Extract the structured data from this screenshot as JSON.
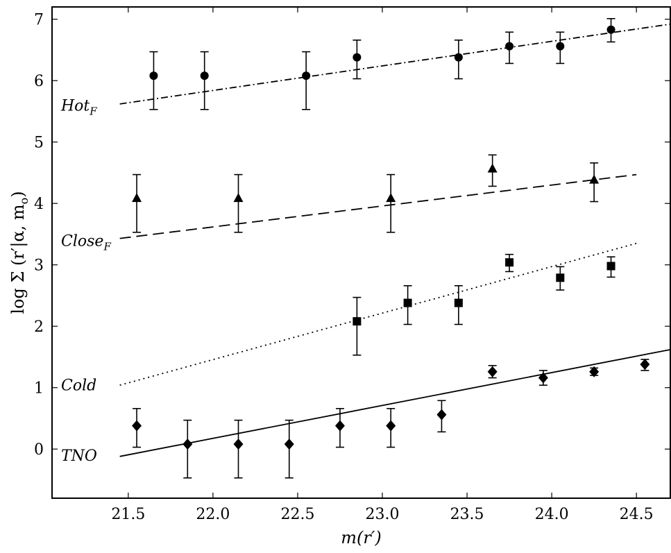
{
  "chart_data": {
    "type": "scatter",
    "title": "",
    "xlabel": "m(r′)",
    "ylabel": "log Σ (r′|α, m",
    "ylabel_sub": "o",
    "ylabel_close": ")",
    "xlim": [
      21.05,
      24.7
    ],
    "ylim": [
      -0.8,
      7.2
    ],
    "x_ticks": [
      21.5,
      22.0,
      22.5,
      23.0,
      23.5,
      24.0,
      24.5
    ],
    "x_tick_labels": [
      "21.5",
      "22.0",
      "22.5",
      "23.0",
      "23.5",
      "24.0",
      "24.5"
    ],
    "y_ticks": [
      0,
      1,
      2,
      3,
      4,
      5,
      6,
      7
    ],
    "y_tick_labels": [
      "0",
      "1",
      "2",
      "3",
      "4",
      "5",
      "6",
      "7"
    ],
    "grid": false,
    "series": [
      {
        "label": "Hot",
        "label_sub": "F",
        "label_y": 5.6,
        "marker": "circle",
        "line_style": "dashdot",
        "fit": [
          [
            21.45,
            5.62
          ],
          [
            24.7,
            6.92
          ]
        ],
        "points": [
          {
            "x": 21.65,
            "y": 6.08,
            "err_low": 0.55,
            "err_high": 0.39
          },
          {
            "x": 21.95,
            "y": 6.08,
            "err_low": 0.55,
            "err_high": 0.39
          },
          {
            "x": 22.55,
            "y": 6.08,
            "err_low": 0.55,
            "err_high": 0.39
          },
          {
            "x": 22.85,
            "y": 6.38,
            "err_low": 0.35,
            "err_high": 0.28
          },
          {
            "x": 23.45,
            "y": 6.38,
            "err_low": 0.35,
            "err_high": 0.28
          },
          {
            "x": 23.75,
            "y": 6.56,
            "err_low": 0.28,
            "err_high": 0.23
          },
          {
            "x": 24.05,
            "y": 6.56,
            "err_low": 0.28,
            "err_high": 0.23
          },
          {
            "x": 24.35,
            "y": 6.83,
            "err_low": 0.2,
            "err_high": 0.18
          }
        ]
      },
      {
        "label": "Close",
        "label_sub": "F",
        "label_y": 3.4,
        "marker": "triangle",
        "line_style": "dashed",
        "fit": [
          [
            21.45,
            3.43
          ],
          [
            24.5,
            4.47
          ]
        ],
        "points": [
          {
            "x": 21.55,
            "y": 4.08,
            "err_low": 0.55,
            "err_high": 0.39
          },
          {
            "x": 22.15,
            "y": 4.08,
            "err_low": 0.55,
            "err_high": 0.39
          },
          {
            "x": 23.05,
            "y": 4.08,
            "err_low": 0.55,
            "err_high": 0.39
          },
          {
            "x": 23.65,
            "y": 4.56,
            "err_low": 0.28,
            "err_high": 0.23
          },
          {
            "x": 24.25,
            "y": 4.38,
            "err_low": 0.35,
            "err_high": 0.28
          }
        ]
      },
      {
        "label": "Cold",
        "label_sub": "",
        "label_y": 1.05,
        "marker": "square",
        "line_style": "dotted",
        "fit": [
          [
            21.45,
            1.04
          ],
          [
            24.5,
            3.35
          ]
        ],
        "points": [
          {
            "x": 22.85,
            "y": 2.08,
            "err_low": 0.55,
            "err_high": 0.39
          },
          {
            "x": 23.15,
            "y": 2.38,
            "err_low": 0.35,
            "err_high": 0.28
          },
          {
            "x": 23.45,
            "y": 2.38,
            "err_low": 0.35,
            "err_high": 0.28
          },
          {
            "x": 23.75,
            "y": 3.04,
            "err_low": 0.15,
            "err_high": 0.13
          },
          {
            "x": 24.05,
            "y": 2.79,
            "err_low": 0.2,
            "err_high": 0.18
          },
          {
            "x": 24.35,
            "y": 2.98,
            "err_low": 0.18,
            "err_high": 0.15
          }
        ]
      },
      {
        "label": "TNO",
        "label_sub": "",
        "label_y": -0.1,
        "marker": "diamond",
        "line_style": "solid",
        "fit": [
          [
            21.45,
            -0.12
          ],
          [
            24.7,
            1.62
          ]
        ],
        "points": [
          {
            "x": 21.55,
            "y": 0.38,
            "err_low": 0.35,
            "err_high": 0.28
          },
          {
            "x": 21.85,
            "y": 0.08,
            "err_low": 0.55,
            "err_high": 0.39
          },
          {
            "x": 22.15,
            "y": 0.08,
            "err_low": 0.55,
            "err_high": 0.39
          },
          {
            "x": 22.45,
            "y": 0.08,
            "err_low": 0.55,
            "err_high": 0.39
          },
          {
            "x": 22.75,
            "y": 0.38,
            "err_low": 0.35,
            "err_high": 0.28
          },
          {
            "x": 23.05,
            "y": 0.38,
            "err_low": 0.35,
            "err_high": 0.28
          },
          {
            "x": 23.35,
            "y": 0.56,
            "err_low": 0.28,
            "err_high": 0.23
          },
          {
            "x": 23.65,
            "y": 1.26,
            "err_low": 0.1,
            "err_high": 0.1
          },
          {
            "x": 23.95,
            "y": 1.16,
            "err_low": 0.12,
            "err_high": 0.12
          },
          {
            "x": 24.25,
            "y": 1.26,
            "err_low": 0.06,
            "err_high": 0.06
          },
          {
            "x": 24.55,
            "y": 1.38,
            "err_low": 0.1,
            "err_high": 0.08
          }
        ]
      }
    ]
  }
}
